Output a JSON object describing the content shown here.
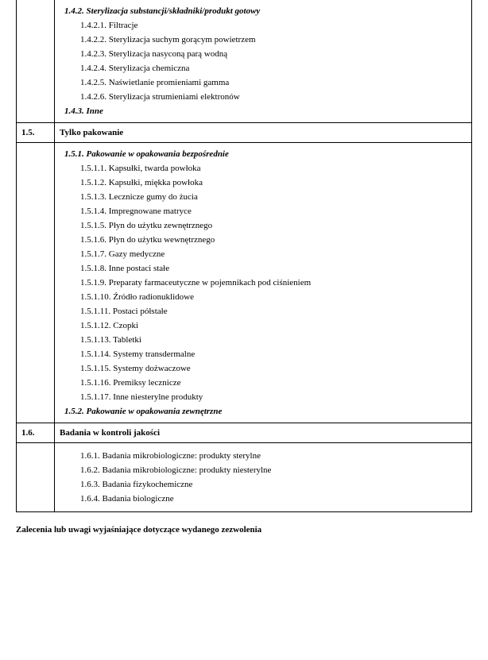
{
  "sections": {
    "s142": {
      "heading": "1.4.2. Sterylizacja substancji/składniki/produkt gotowy",
      "items": [
        "1.4.2.1. Filtracje",
        "1.4.2.2. Sterylizacja suchym gorącym powietrzem",
        "1.4.2.3. Sterylizacja nasyconą parą wodną",
        "1.4.2.4. Sterylizacja chemiczna",
        "1.4.2.5. Naświetlanie promieniami gamma",
        "1.4.2.6. Sterylizacja strumieniami elektronów"
      ]
    },
    "s143": {
      "heading": "1.4.3. Inne"
    },
    "r15": {
      "num": "1.5.",
      "title": "Tylko pakowanie"
    },
    "s151": {
      "heading": "1.5.1. Pakowanie w opakowania bezpośrednie",
      "items": [
        "1.5.1.1. Kapsułki, twarda powłoka",
        "1.5.1.2. Kapsułki, miękka powłoka",
        "1.5.1.3. Lecznicze gumy do żucia",
        "1.5.1.4. Impregnowane matryce",
        "1.5.1.5. Płyn do użytku zewnętrznego",
        "1.5.1.6. Płyn do użytku wewnętrznego",
        "1.5.1.7. Gazy medyczne",
        "1.5.1.8. Inne postaci stałe",
        "1.5.1.9. Preparaty farmaceutyczne w pojemnikach pod ciśnieniem",
        "1.5.1.10. Źródło radionuklidowe",
        "1.5.1.11. Postaci półstałe",
        "1.5.1.12. Czopki",
        "1.5.1.13. Tabletki",
        "1.5.1.14. Systemy transdermalne",
        "1.5.1.15. Systemy dożwaczowe",
        "1.5.1.16. Premiksy lecznicze",
        "1.5.1.17. Inne niesterylne produkty"
      ]
    },
    "s152": {
      "heading": "1.5.2. Pakowanie w opakowania zewnętrzne"
    },
    "r16": {
      "num": "1.6.",
      "title": "Badania w kontroli jakości"
    },
    "s16": {
      "items": [
        "1.6.1. Badania mikrobiologiczne: produkty sterylne",
        "1.6.2. Badania mikrobiologiczne: produkty niesterylne",
        "1.6.3. Badania fizykochemiczne",
        "1.6.4. Badania biologiczne"
      ]
    }
  },
  "footer": "Zalecenia lub uwagi wyjaśniające dotyczące wydanego zezwolenia"
}
